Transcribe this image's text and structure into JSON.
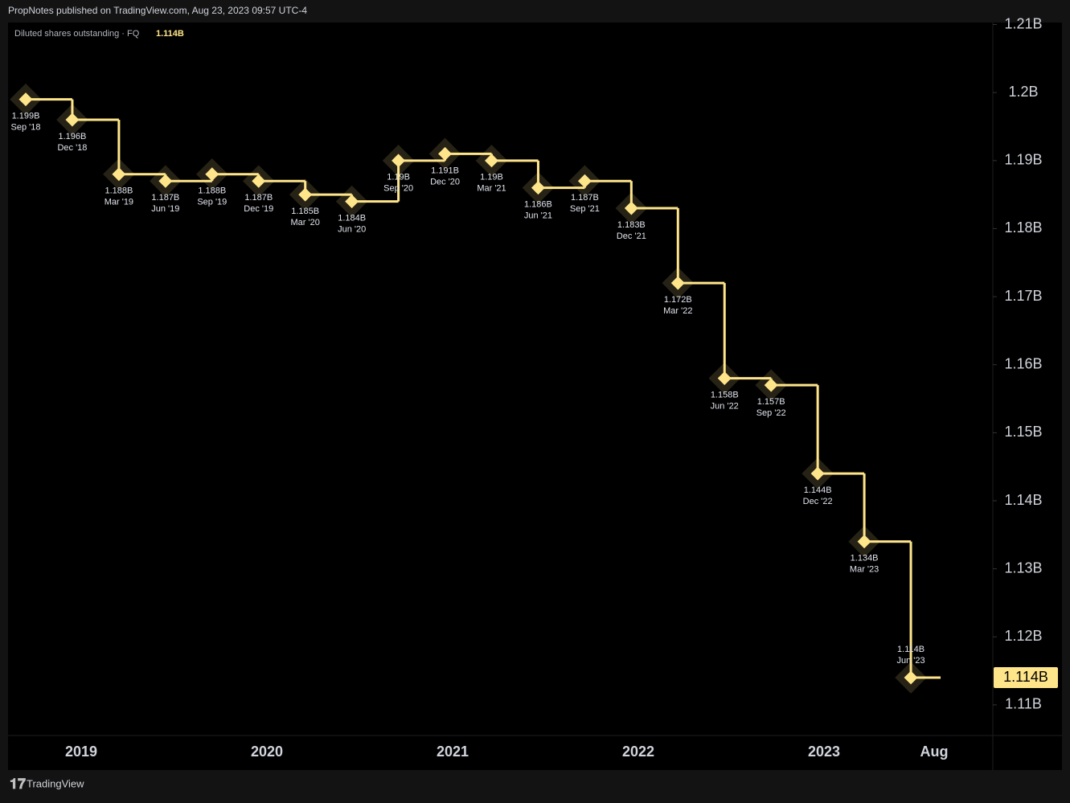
{
  "header": "PropNotes published on TradingView.com, Aug 23, 2023 09:57 UTC-4",
  "footer": "TradingView",
  "chart_data": {
    "type": "step",
    "legend_title": "Diluted shares outstanding · FQ",
    "categories": [
      "Sep '18",
      "Dec '18",
      "Mar '19",
      "Jun '19",
      "Sep '19",
      "Dec '19",
      "Mar '20",
      "Jun '20",
      "Sep '20",
      "Dec '20",
      "Mar '21",
      "Jun '21",
      "Sep '21",
      "Dec '21",
      "Mar '22",
      "Jun '22",
      "Sep '22",
      "Dec '22",
      "Mar '23",
      "Jun '23"
    ],
    "values": [
      1.199,
      1.196,
      1.188,
      1.187,
      1.188,
      1.187,
      1.185,
      1.184,
      1.19,
      1.191,
      1.19,
      1.186,
      1.187,
      1.183,
      1.172,
      1.158,
      1.157,
      1.144,
      1.134,
      1.114
    ],
    "value_labels": [
      "1.199B",
      "1.196B",
      "1.188B",
      "1.187B",
      "1.188B",
      "1.187B",
      "1.185B",
      "1.184B",
      "1.19B",
      "1.191B",
      "1.19B",
      "1.186B",
      "1.187B",
      "1.183B",
      "1.172B",
      "1.158B",
      "1.157B",
      "1.144B",
      "1.134B",
      "1.114B"
    ],
    "color": "#ffe58a",
    "ylim": [
      1.1055,
      1.2103
    ],
    "yticks": [
      {
        "value": 1.11,
        "label": "1.11B"
      },
      {
        "value": 1.12,
        "label": "1.12B"
      },
      {
        "value": 1.13,
        "label": "1.13B"
      },
      {
        "value": 1.14,
        "label": "1.14B"
      },
      {
        "value": 1.15,
        "label": "1.15B"
      },
      {
        "value": 1.16,
        "label": "1.16B"
      },
      {
        "value": 1.17,
        "label": "1.17B"
      },
      {
        "value": 1.18,
        "label": "1.18B"
      },
      {
        "value": 1.19,
        "label": "1.19B"
      },
      {
        "value": 1.2,
        "label": "1.2B"
      },
      {
        "value": 1.21,
        "label": "1.21B"
      }
    ],
    "x_axis_labels": [
      "2019",
      "2020",
      "2021",
      "2022",
      "2023",
      "Aug"
    ]
  }
}
